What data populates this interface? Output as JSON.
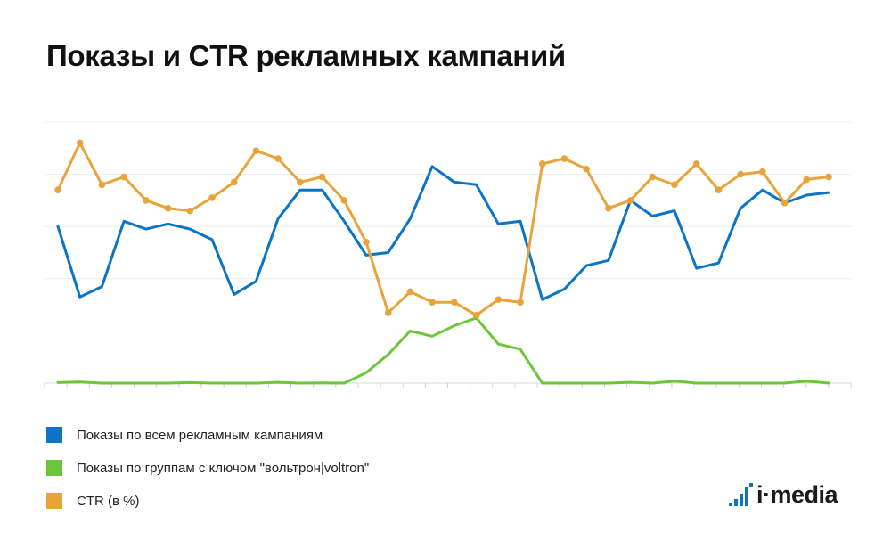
{
  "title": "Показы и CTR рекламных кампаний",
  "logo": {
    "text": "i·media",
    "icon": "bar-steps-icon",
    "color": "#0b74c4"
  },
  "chart_data": {
    "type": "line",
    "title": "Показы и CTR рекламных кампаний",
    "xlabel": "",
    "ylabel": "",
    "ylim": [
      0,
      100
    ],
    "grid": true,
    "gridlines": [
      0,
      20,
      40,
      60,
      80,
      100
    ],
    "legend_position": "bottom-left",
    "x": [
      1,
      2,
      3,
      4,
      5,
      6,
      7,
      8,
      9,
      10,
      11,
      12,
      13,
      14,
      15,
      16,
      17,
      18,
      19,
      20,
      21,
      22,
      23,
      24,
      25,
      26,
      27,
      28,
      29,
      30,
      31,
      32,
      33,
      34,
      35,
      36
    ],
    "series": [
      {
        "name": "Показы по всем рекламным кампаниям",
        "color": "#0b74c4",
        "markers": false,
        "values": [
          60,
          33,
          37,
          62,
          59,
          61,
          59,
          55,
          34,
          39,
          63,
          74,
          74,
          62,
          49,
          50,
          63,
          83,
          77,
          76,
          61,
          62,
          32,
          36,
          45,
          47,
          70,
          64,
          66,
          44,
          46,
          67,
          74,
          69,
          72,
          73
        ]
      },
      {
        "name": "Показы по группам с ключом \"вольтрон|voltron\"",
        "color": "#6cc63b",
        "markers": false,
        "values": [
          0.2,
          0.4,
          0,
          0,
          0,
          0,
          0.2,
          0,
          0,
          0,
          0.3,
          0,
          0.1,
          0,
          4,
          11,
          20,
          18,
          22,
          25,
          15,
          13,
          0,
          0,
          0,
          0,
          0.3,
          0,
          0.8,
          0,
          0,
          0,
          0,
          0,
          0.8,
          0
        ]
      },
      {
        "name": "CTR (в %)",
        "color": "#e8a43a",
        "markers": true,
        "values": [
          74,
          92,
          76,
          79,
          70,
          67,
          66,
          71,
          77,
          89,
          86,
          77,
          79,
          70,
          54,
          27,
          35,
          31,
          31,
          26,
          32,
          31,
          84,
          86,
          82,
          67,
          70,
          79,
          76,
          84,
          74,
          80,
          81,
          69,
          78,
          79
        ]
      }
    ]
  }
}
